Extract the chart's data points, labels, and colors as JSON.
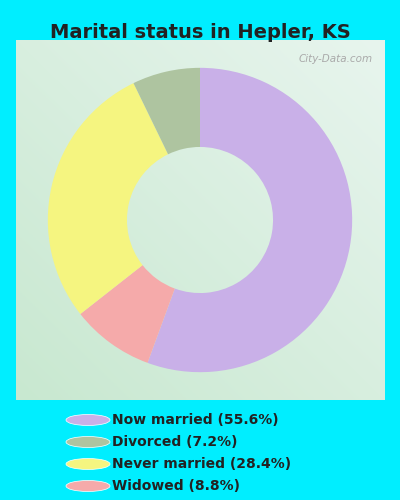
{
  "title": "Marital status in Hepler, KS",
  "slices": [
    55.6,
    7.2,
    28.4,
    8.8
  ],
  "labels": [
    "Now married (55.6%)",
    "Divorced (7.2%)",
    "Never married (28.4%)",
    "Widowed (8.8%)"
  ],
  "colors": [
    "#c9b0e8",
    "#aec4a0",
    "#f5f580",
    "#f5aaaa"
  ],
  "bg_outer": "#00eeff",
  "bg_chart_color1": "#e8f5ee",
  "bg_chart_color2": "#c8e8d8",
  "watermark": "City-Data.com",
  "title_fontsize": 14,
  "title_fontweight": "bold",
  "title_color": "#222222",
  "legend_fontsize": 10,
  "legend_color": "#222222"
}
